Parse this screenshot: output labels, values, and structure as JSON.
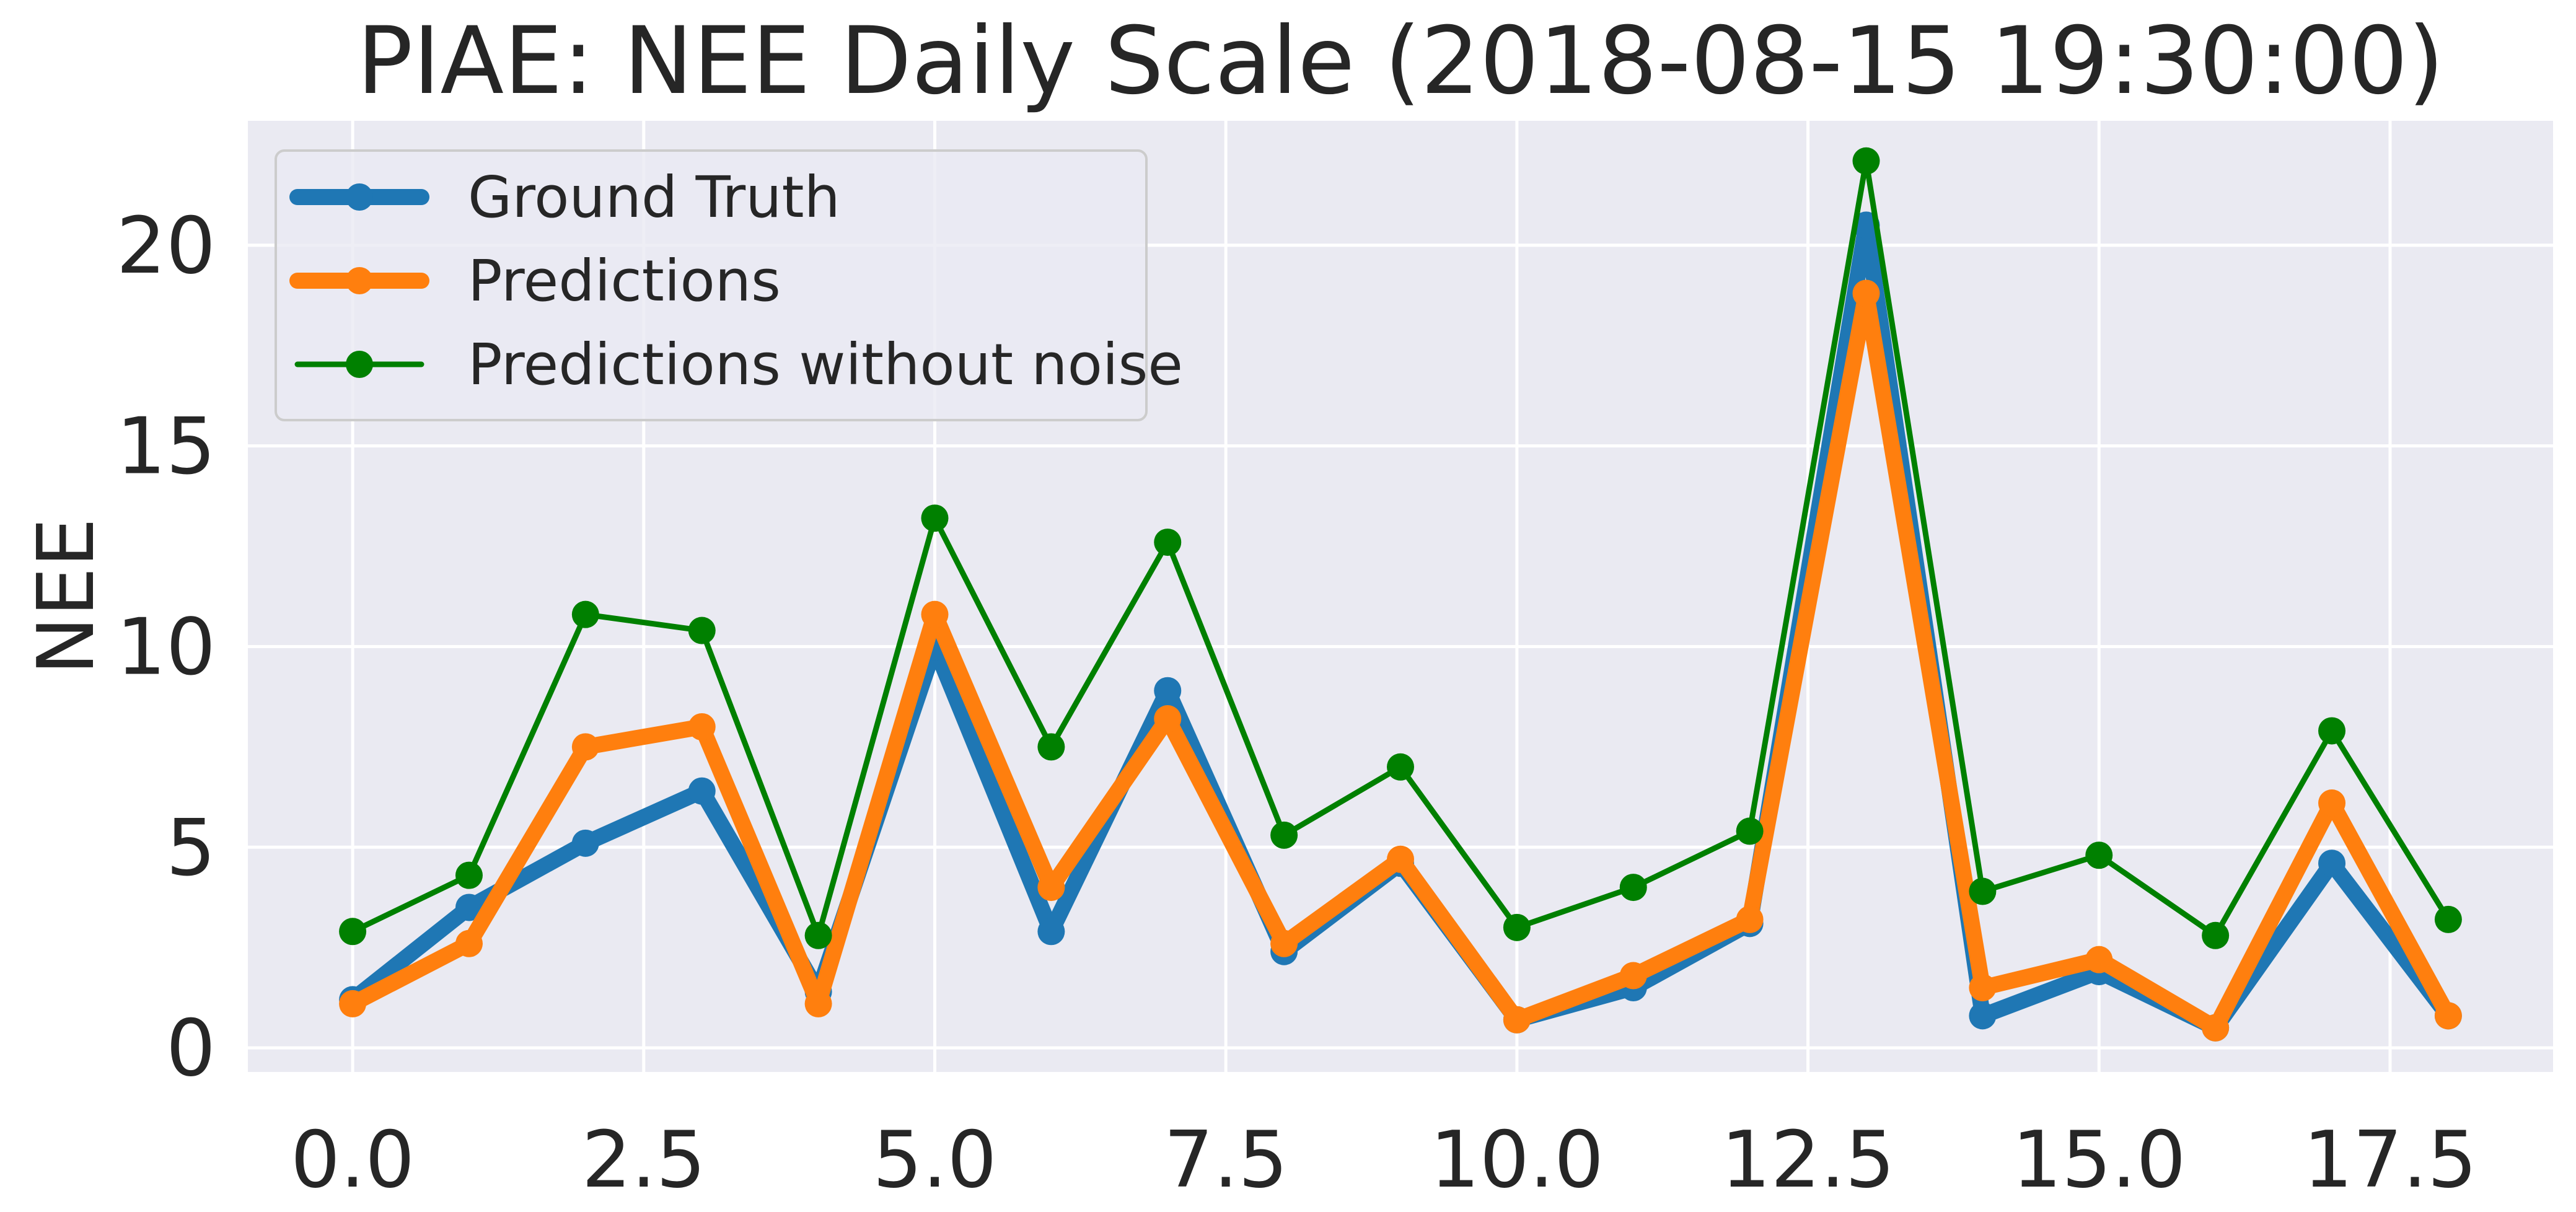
{
  "chart_data": {
    "type": "line",
    "title": "PIAE: NEE Daily Scale (2018-08-15 19:30:00)",
    "xlabel": "",
    "ylabel": "NEE",
    "x": [
      0,
      1,
      2,
      3,
      4,
      5,
      6,
      7,
      8,
      9,
      10,
      11,
      12,
      13,
      14,
      15,
      16,
      17,
      18
    ],
    "xlim": [
      -0.9,
      18.9
    ],
    "ylim": [
      -0.6,
      23.1
    ],
    "x_ticks": [
      0.0,
      2.5,
      5.0,
      7.5,
      10.0,
      12.5,
      15.0,
      17.5
    ],
    "x_tick_labels": [
      "0.0",
      "2.5",
      "5.0",
      "7.5",
      "10.0",
      "12.5",
      "15.0",
      "17.5"
    ],
    "y_ticks": [
      0,
      5,
      10,
      15,
      20
    ],
    "y_tick_labels": [
      "0",
      "5",
      "10",
      "15",
      "20"
    ],
    "grid": true,
    "legend_position": "top-left",
    "background_color": "#eaeaf2",
    "series": [
      {
        "name": "Ground Truth",
        "color": "#1f77b4",
        "values": [
          1.2,
          3.5,
          5.1,
          6.4,
          1.4,
          10.0,
          2.9,
          8.9,
          2.4,
          4.6,
          0.7,
          1.5,
          3.1,
          20.5,
          0.8,
          1.9,
          0.5,
          4.6,
          0.8
        ]
      },
      {
        "name": "Predictions",
        "color": "#ff7f0e",
        "values": [
          1.1,
          2.6,
          7.5,
          8.0,
          1.1,
          10.8,
          4.0,
          8.2,
          2.6,
          4.7,
          0.7,
          1.8,
          3.2,
          18.8,
          1.5,
          2.2,
          0.5,
          6.1,
          0.8
        ]
      },
      {
        "name": "Predictions without noise",
        "color": "#008000",
        "values": [
          2.9,
          4.3,
          10.8,
          10.4,
          2.8,
          13.2,
          7.5,
          12.6,
          5.3,
          7.0,
          3.0,
          4.0,
          5.4,
          22.1,
          3.9,
          4.8,
          2.8,
          7.9,
          3.2
        ]
      }
    ]
  }
}
